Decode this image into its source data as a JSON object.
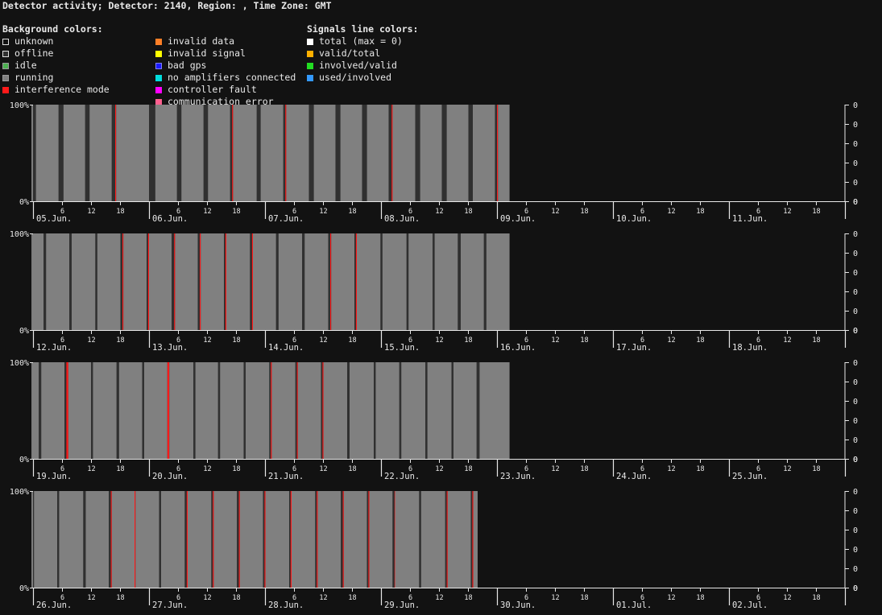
{
  "header": {
    "title": "Detector activity; Detector: 2140, Region: , Time Zone: GMT"
  },
  "legend": {
    "background_heading": "Background colors:",
    "background_col1": [
      {
        "label": "unknown",
        "color": "#121212",
        "border": "#e0e0e0"
      },
      {
        "label": "offline",
        "color": "#303030",
        "border": "#e0e0e0"
      },
      {
        "label": "idle",
        "color": "#4caf50",
        "border": "#9a9a9a"
      },
      {
        "label": "running",
        "color": "#808080",
        "border": "#9a9a9a"
      },
      {
        "label": "interference mode",
        "color": "#ff1a1a",
        "border": "#ff1a1a"
      }
    ],
    "background_col2": [
      {
        "label": "invalid data",
        "color": "#ff7f27",
        "border": "#ff7f27"
      },
      {
        "label": "invalid signal",
        "color": "#ffff00",
        "border": "#ffff00"
      },
      {
        "label": "bad gps",
        "color": "#1a1aff",
        "border": "#8080ff"
      },
      {
        "label": "no amplifiers connected",
        "color": "#00dddd",
        "border": "#00dddd"
      },
      {
        "label": "controller fault",
        "color": "#ff00ff",
        "border": "#ff00ff"
      },
      {
        "label": "communication error",
        "color": "#ff5f8f",
        "border": "#ff5f8f"
      }
    ],
    "signals_heading": "Signals line colors:",
    "signals": [
      {
        "label": "total (max = 0)",
        "color": "#ffffff"
      },
      {
        "label": "valid/total",
        "color": "#ffb000"
      },
      {
        "label": "involved/valid",
        "color": "#22dd22"
      },
      {
        "label": "used/involved",
        "color": "#3399ff"
      }
    ]
  },
  "colors": {
    "running": "#808080",
    "offline": "#303030",
    "interference": "#ff1a1a",
    "axis": "#e8e8e8",
    "background": "#121212"
  },
  "chart_data": {
    "type": "timeline",
    "y_left_ticks": [
      "100%",
      "0%"
    ],
    "y_right_ticks": [
      "0",
      "0",
      "0",
      "0",
      "0",
      "0"
    ],
    "hour_ticks": [
      "6",
      "12",
      "18"
    ],
    "rows": [
      {
        "days": [
          "05.Jun.",
          "06.Jun.",
          "07.Jun.",
          "08.Jun.",
          "09.Jun.",
          "10.Jun.",
          "11.Jun."
        ],
        "segments": [
          [
            0.0,
            0.6,
            "offline"
          ],
          [
            0.6,
            5.3,
            "running"
          ],
          [
            5.3,
            6.3,
            "offline"
          ],
          [
            6.3,
            10.8,
            "running"
          ],
          [
            10.8,
            11.7,
            "offline"
          ],
          [
            11.7,
            16.3,
            "running"
          ],
          [
            16.3,
            17.0,
            "offline"
          ],
          [
            17.0,
            17.2,
            "interference"
          ],
          [
            17.2,
            24.0,
            "running"
          ],
          [
            24.0,
            25.3,
            "offline"
          ],
          [
            25.3,
            29.8,
            "running"
          ],
          [
            29.8,
            30.7,
            "offline"
          ],
          [
            30.7,
            35.3,
            "running"
          ],
          [
            35.3,
            36.2,
            "offline"
          ],
          [
            36.2,
            40.8,
            "running"
          ],
          [
            40.8,
            41.2,
            "offline"
          ],
          [
            41.2,
            41.4,
            "interference"
          ],
          [
            41.4,
            46.3,
            "running"
          ],
          [
            46.3,
            47.1,
            "offline"
          ],
          [
            47.1,
            51.8,
            "running"
          ],
          [
            51.8,
            52.2,
            "offline"
          ],
          [
            52.2,
            52.4,
            "interference"
          ],
          [
            52.4,
            57.1,
            "running"
          ],
          [
            57.1,
            58.1,
            "offline"
          ],
          [
            58.1,
            62.6,
            "running"
          ],
          [
            62.6,
            63.6,
            "offline"
          ],
          [
            63.6,
            68.1,
            "running"
          ],
          [
            68.1,
            69.1,
            "offline"
          ],
          [
            69.1,
            73.6,
            "running"
          ],
          [
            73.6,
            74.2,
            "offline"
          ],
          [
            74.2,
            74.4,
            "interference"
          ],
          [
            74.4,
            79.1,
            "running"
          ],
          [
            79.1,
            80.1,
            "offline"
          ],
          [
            80.1,
            84.6,
            "running"
          ],
          [
            84.6,
            85.6,
            "offline"
          ],
          [
            85.6,
            90.1,
            "running"
          ],
          [
            90.1,
            91.0,
            "offline"
          ],
          [
            91.0,
            95.6,
            "running"
          ],
          [
            95.6,
            96.0,
            "offline"
          ],
          [
            96.0,
            96.2,
            "interference"
          ],
          [
            96.2,
            98.6,
            "running"
          ]
        ]
      },
      {
        "days": [
          "12.Jun.",
          "13.Jun.",
          "14.Jun.",
          "15.Jun.",
          "16.Jun.",
          "17.Jun.",
          "18.Jun."
        ],
        "segments": [
          [
            0.0,
            2.2,
            "running"
          ],
          [
            2.2,
            2.7,
            "offline"
          ],
          [
            2.7,
            7.5,
            "running"
          ],
          [
            7.5,
            8.0,
            "offline"
          ],
          [
            8.0,
            12.9,
            "running"
          ],
          [
            12.9,
            13.3,
            "offline"
          ],
          [
            13.3,
            18.1,
            "running"
          ],
          [
            18.1,
            18.5,
            "offline"
          ],
          [
            18.5,
            18.7,
            "interference"
          ],
          [
            18.7,
            23.5,
            "running"
          ],
          [
            23.5,
            23.8,
            "offline"
          ],
          [
            23.8,
            24.0,
            "interference"
          ],
          [
            24.0,
            28.7,
            "running"
          ],
          [
            28.7,
            29.2,
            "offline"
          ],
          [
            29.2,
            29.4,
            "interference"
          ],
          [
            29.4,
            34.1,
            "running"
          ],
          [
            34.1,
            34.5,
            "offline"
          ],
          [
            34.5,
            34.7,
            "interference"
          ],
          [
            34.7,
            39.5,
            "running"
          ],
          [
            39.5,
            39.8,
            "offline"
          ],
          [
            39.8,
            40.0,
            "interference"
          ],
          [
            40.0,
            44.9,
            "running"
          ],
          [
            44.9,
            45.3,
            "offline"
          ],
          [
            45.3,
            45.5,
            "interference"
          ],
          [
            45.5,
            50.3,
            "running"
          ],
          [
            50.3,
            50.8,
            "offline"
          ],
          [
            50.8,
            55.7,
            "running"
          ],
          [
            55.7,
            56.2,
            "offline"
          ],
          [
            56.2,
            61.1,
            "running"
          ],
          [
            61.1,
            61.5,
            "offline"
          ],
          [
            61.5,
            61.7,
            "interference"
          ],
          [
            61.7,
            66.5,
            "running"
          ],
          [
            66.5,
            66.8,
            "offline"
          ],
          [
            66.8,
            67.0,
            "interference"
          ],
          [
            67.0,
            71.9,
            "running"
          ],
          [
            71.9,
            72.3,
            "offline"
          ],
          [
            72.3,
            77.3,
            "running"
          ],
          [
            77.3,
            77.7,
            "offline"
          ],
          [
            77.7,
            82.7,
            "running"
          ],
          [
            82.7,
            83.1,
            "offline"
          ],
          [
            83.1,
            87.9,
            "running"
          ],
          [
            87.9,
            88.5,
            "offline"
          ],
          [
            88.5,
            93.3,
            "running"
          ],
          [
            93.3,
            93.8,
            "offline"
          ],
          [
            93.8,
            98.6,
            "running"
          ]
        ]
      },
      {
        "days": [
          "19.Jun.",
          "20.Jun.",
          "21.Jun.",
          "22.Jun.",
          "23.Jun.",
          "24.Jun.",
          "25.Jun."
        ],
        "segments": [
          [
            0.0,
            1.2,
            "running"
          ],
          [
            1.2,
            1.7,
            "offline"
          ],
          [
            1.7,
            6.5,
            "running"
          ],
          [
            6.5,
            6.9,
            "offline"
          ],
          [
            6.9,
            7.3,
            "interference"
          ],
          [
            7.3,
            12.0,
            "running"
          ],
          [
            12.0,
            12.4,
            "offline"
          ],
          [
            12.4,
            17.3,
            "running"
          ],
          [
            17.3,
            17.8,
            "offline"
          ],
          [
            17.8,
            22.6,
            "running"
          ],
          [
            22.6,
            23.0,
            "offline"
          ],
          [
            23.0,
            27.8,
            "running"
          ],
          [
            27.8,
            28.2,
            "interference"
          ],
          [
            28.2,
            33.2,
            "running"
          ],
          [
            33.2,
            33.6,
            "offline"
          ],
          [
            33.6,
            38.3,
            "running"
          ],
          [
            38.3,
            38.7,
            "offline"
          ],
          [
            38.7,
            43.6,
            "running"
          ],
          [
            43.6,
            44.0,
            "offline"
          ],
          [
            44.0,
            48.9,
            "running"
          ],
          [
            48.9,
            49.2,
            "offline"
          ],
          [
            49.2,
            49.4,
            "interference"
          ],
          [
            49.4,
            54.3,
            "running"
          ],
          [
            54.3,
            54.6,
            "offline"
          ],
          [
            54.6,
            54.8,
            "interference"
          ],
          [
            54.8,
            59.6,
            "running"
          ],
          [
            59.6,
            59.9,
            "offline"
          ],
          [
            59.9,
            60.1,
            "interference"
          ],
          [
            60.1,
            65.0,
            "running"
          ],
          [
            65.0,
            65.5,
            "offline"
          ],
          [
            65.5,
            70.5,
            "running"
          ],
          [
            70.5,
            70.9,
            "offline"
          ],
          [
            70.9,
            75.8,
            "running"
          ],
          [
            75.8,
            76.2,
            "offline"
          ],
          [
            76.2,
            81.2,
            "running"
          ],
          [
            81.2,
            81.6,
            "offline"
          ],
          [
            81.6,
            86.6,
            "running"
          ],
          [
            86.6,
            87.0,
            "offline"
          ],
          [
            87.0,
            91.8,
            "running"
          ],
          [
            91.8,
            92.4,
            "offline"
          ],
          [
            92.4,
            98.6,
            "running"
          ]
        ]
      },
      {
        "days": [
          "26.Jun.",
          "27.Jun.",
          "28.Jun.",
          "29.Jun.",
          "30.Jun.",
          "01.Jul.",
          "02.Jul."
        ],
        "segments": [
          [
            0.0,
            0.2,
            "offline"
          ],
          [
            0.2,
            5.0,
            "running"
          ],
          [
            5.0,
            5.4,
            "offline"
          ],
          [
            5.4,
            10.4,
            "running"
          ],
          [
            10.4,
            10.9,
            "offline"
          ],
          [
            10.9,
            15.7,
            "running"
          ],
          [
            15.7,
            16.1,
            "offline"
          ],
          [
            16.1,
            16.3,
            "interference"
          ],
          [
            16.3,
            21.0,
            "running"
          ],
          [
            21.0,
            21.2,
            "interference"
          ],
          [
            21.2,
            26.1,
            "running"
          ],
          [
            26.1,
            26.5,
            "offline"
          ],
          [
            26.5,
            31.4,
            "running"
          ],
          [
            31.4,
            31.8,
            "offline"
          ],
          [
            31.8,
            32.0,
            "interference"
          ],
          [
            32.0,
            36.9,
            "running"
          ],
          [
            36.9,
            37.2,
            "offline"
          ],
          [
            37.2,
            37.4,
            "interference"
          ],
          [
            37.4,
            42.2,
            "running"
          ],
          [
            42.2,
            42.6,
            "offline"
          ],
          [
            42.6,
            42.8,
            "interference"
          ],
          [
            42.8,
            47.6,
            "running"
          ],
          [
            47.6,
            47.9,
            "offline"
          ],
          [
            47.9,
            48.1,
            "interference"
          ],
          [
            48.1,
            53.0,
            "running"
          ],
          [
            53.0,
            53.3,
            "offline"
          ],
          [
            53.3,
            53.5,
            "interference"
          ],
          [
            53.5,
            58.4,
            "running"
          ],
          [
            58.4,
            58.7,
            "offline"
          ],
          [
            58.7,
            58.9,
            "interference"
          ],
          [
            58.9,
            63.7,
            "running"
          ],
          [
            63.7,
            64.1,
            "offline"
          ],
          [
            64.1,
            64.3,
            "interference"
          ],
          [
            64.3,
            69.1,
            "running"
          ],
          [
            69.1,
            69.4,
            "offline"
          ],
          [
            69.4,
            69.6,
            "interference"
          ],
          [
            69.6,
            74.4,
            "running"
          ],
          [
            74.4,
            74.8,
            "offline"
          ],
          [
            74.8,
            74.9,
            "interference"
          ],
          [
            74.9,
            79.9,
            "running"
          ],
          [
            79.9,
            80.3,
            "offline"
          ],
          [
            80.3,
            85.3,
            "running"
          ],
          [
            85.3,
            85.6,
            "offline"
          ],
          [
            85.6,
            85.8,
            "interference"
          ],
          [
            85.8,
            90.6,
            "running"
          ],
          [
            90.6,
            90.9,
            "offline"
          ],
          [
            90.9,
            91.1,
            "interference"
          ],
          [
            91.1,
            92.0,
            "running"
          ]
        ]
      }
    ]
  }
}
